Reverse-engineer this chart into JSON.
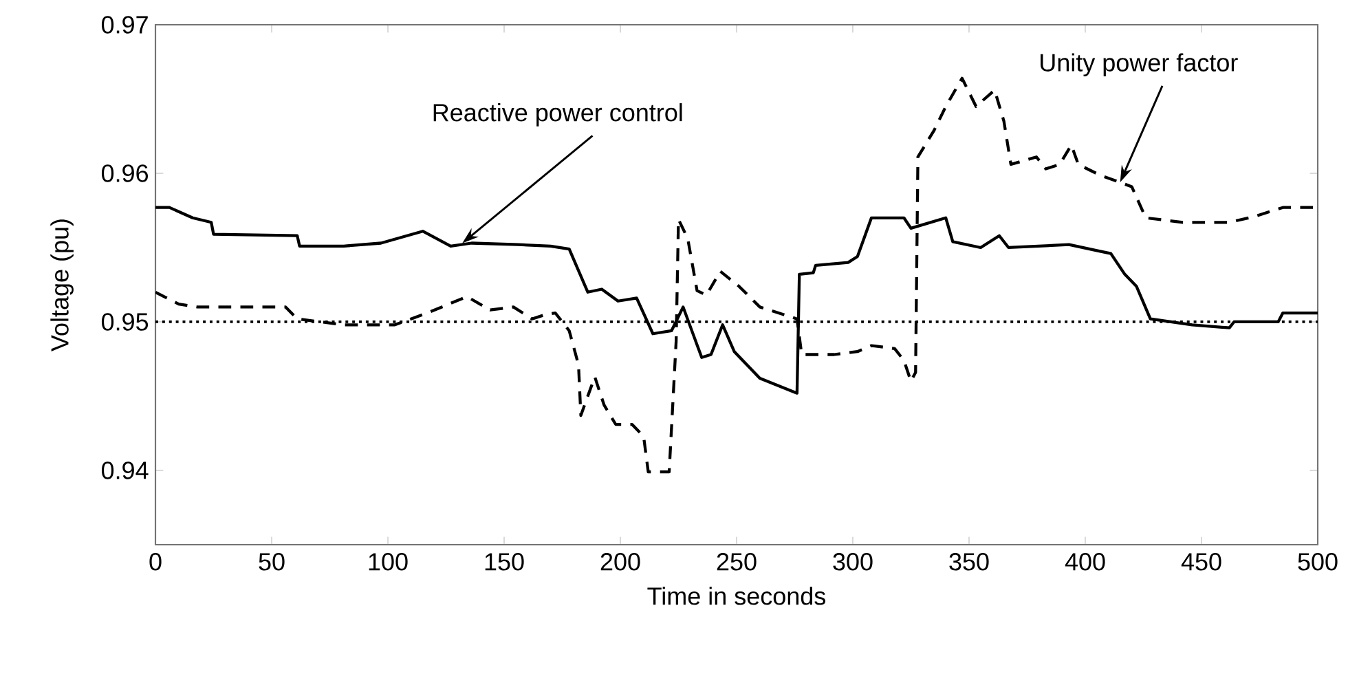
{
  "chart_data": {
    "type": "line",
    "xlabel": "Time in seconds",
    "ylabel": "Voltage (pu)",
    "xlim": [
      0,
      500
    ],
    "xticks": [
      0,
      50,
      100,
      150,
      200,
      250,
      300,
      350,
      400,
      450,
      500
    ],
    "ylim": [
      0.935,
      0.97
    ],
    "yticks": [
      0.94,
      0.95,
      0.96,
      0.97
    ],
    "grid": false,
    "marker": "none",
    "series": [
      {
        "color": "#000000",
        "line_style": "solid",
        "x": [
          0,
          6,
          16,
          24,
          25,
          61,
          62,
          81,
          97,
          115,
          127,
          136,
          156,
          170,
          178,
          186,
          192,
          199,
          207,
          214,
          222,
          227,
          235,
          239,
          244,
          249,
          260,
          276,
          277,
          283,
          284,
          298,
          302,
          308,
          322,
          325,
          340,
          343,
          355,
          363,
          367,
          393,
          405,
          411,
          417,
          422,
          428,
          446,
          462,
          464,
          483,
          485,
          500
        ],
        "values": [
          0.9577,
          0.9577,
          0.957,
          0.9567,
          0.9559,
          0.9558,
          0.9551,
          0.9551,
          0.9553,
          0.9561,
          0.9551,
          0.9553,
          0.9552,
          0.9551,
          0.9549,
          0.952,
          0.9522,
          0.9514,
          0.9516,
          0.9492,
          0.9494,
          0.951,
          0.9476,
          0.9478,
          0.9498,
          0.948,
          0.9462,
          0.9452,
          0.9532,
          0.9533,
          0.9538,
          0.954,
          0.9544,
          0.957,
          0.957,
          0.9563,
          0.957,
          0.9554,
          0.955,
          0.9558,
          0.955,
          0.9552,
          0.9548,
          0.9546,
          0.9532,
          0.9524,
          0.9502,
          0.9498,
          0.9496,
          0.95,
          0.95,
          0.9506,
          0.9506
        ]
      },
      {
        "color": "#000000",
        "line_style": "dashed",
        "x": [
          0,
          10,
          18,
          56,
          61,
          81,
          103,
          117,
          134,
          144,
          154,
          162,
          168,
          172,
          178,
          182,
          183,
          189,
          193,
          198,
          205,
          210,
          212,
          221,
          224,
          225,
          229,
          233,
          237,
          243,
          251,
          260,
          276,
          278,
          292,
          302,
          308,
          318,
          322,
          325,
          327,
          328,
          335,
          340,
          347,
          353,
          361,
          365,
          368,
          379,
          383,
          389,
          394,
          397,
          406,
          420,
          426,
          442,
          462,
          473,
          485,
          500
        ],
        "values": [
          0.952,
          0.9512,
          0.951,
          0.951,
          0.9502,
          0.9498,
          0.9498,
          0.9506,
          0.9517,
          0.9508,
          0.951,
          0.9502,
          0.9505,
          0.9506,
          0.9494,
          0.9471,
          0.9437,
          0.9463,
          0.9444,
          0.9431,
          0.9431,
          0.9423,
          0.9399,
          0.9399,
          0.9487,
          0.9569,
          0.9556,
          0.9521,
          0.9518,
          0.9534,
          0.9524,
          0.951,
          0.9502,
          0.9478,
          0.9478,
          0.948,
          0.9484,
          0.9482,
          0.9474,
          0.946,
          0.9466,
          0.9611,
          0.9629,
          0.9645,
          0.9664,
          0.9645,
          0.9656,
          0.9635,
          0.9606,
          0.9611,
          0.9603,
          0.9606,
          0.9619,
          0.9606,
          0.9599,
          0.9591,
          0.957,
          0.9567,
          0.9567,
          0.9571,
          0.9577,
          0.9577
        ]
      }
    ],
    "ref_lines": [
      {
        "axis": "y",
        "value": 0.95,
        "color": "#000000",
        "line_style": "dotted"
      }
    ],
    "annotations": [
      {
        "text": "Reactive power control",
        "x": 132,
        "y": 0.9553
      },
      {
        "text": "Unity power factor",
        "x": 415,
        "y": 0.9594
      }
    ]
  }
}
